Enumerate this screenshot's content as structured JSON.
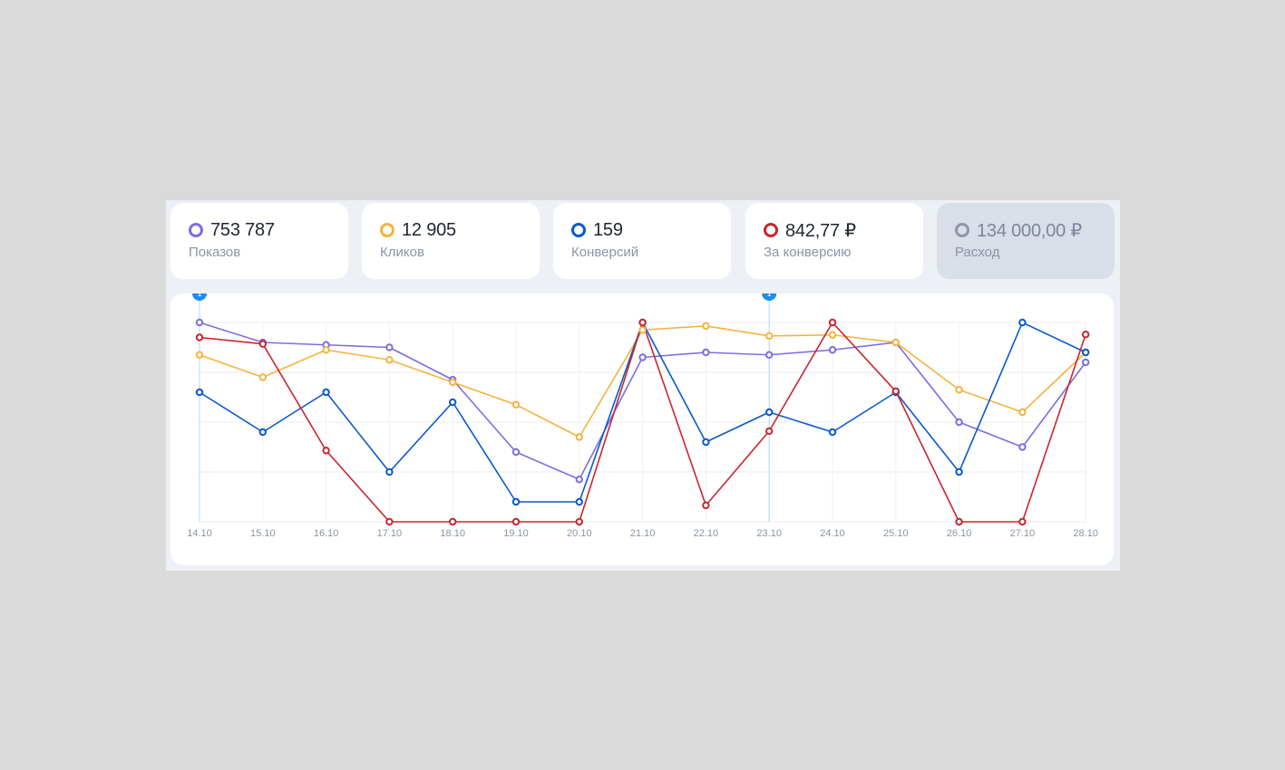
{
  "metrics": [
    {
      "value": "753 787",
      "label": "Показов",
      "color": "#7b6fe2",
      "active": true
    },
    {
      "value": "12 905",
      "label": "Кликов",
      "color": "#f5b33e",
      "active": true
    },
    {
      "value": "159",
      "label": "Конверсий",
      "color": "#0a59cf",
      "active": true
    },
    {
      "value": "842,77 ₽",
      "label": "За конверсию",
      "color": "#c9252e",
      "active": true
    },
    {
      "value": "134 000,00 ₽",
      "label": "Расход",
      "color": "#8e97a8",
      "active": false
    }
  ],
  "chart_data": {
    "type": "line",
    "categories": [
      "14.10",
      "15.10",
      "16.10",
      "17.10",
      "18.10",
      "19.10",
      "20.10",
      "21.10",
      "22.10",
      "23.10",
      "24.10",
      "25.10",
      "26.10",
      "27.10",
      "28.10"
    ],
    "ylim": [
      0,
      4
    ],
    "grid": true,
    "markers": [
      {
        "category": "14.10",
        "label": "1"
      },
      {
        "category": "23.10",
        "label": "1"
      }
    ],
    "series": [
      {
        "name": "Показов",
        "color": "#7b6fe2",
        "values": [
          4.0,
          3.6,
          3.55,
          3.5,
          2.85,
          1.4,
          0.85,
          3.3,
          3.4,
          3.35,
          3.45,
          3.6,
          2.0,
          1.5,
          3.2
        ]
      },
      {
        "name": "Кликов",
        "color": "#f5b33e",
        "values": [
          3.35,
          2.9,
          3.45,
          3.25,
          2.8,
          2.35,
          1.7,
          3.85,
          3.93,
          3.73,
          3.75,
          3.6,
          2.65,
          2.2,
          3.4
        ]
      },
      {
        "name": "Конверсий",
        "color": "#0a59cf",
        "values": [
          2.6,
          1.8,
          2.6,
          1.0,
          2.4,
          0.4,
          0.4,
          4.0,
          1.6,
          2.2,
          1.8,
          2.6,
          1.0,
          4.0,
          3.4
        ]
      },
      {
        "name": "За конверсию",
        "color": "#c9252e",
        "values": [
          3.7,
          3.57,
          1.43,
          0.0,
          0.0,
          0.0,
          0.0,
          4.0,
          0.33,
          1.82,
          4.0,
          2.62,
          0.0,
          0.0,
          3.76
        ]
      }
    ]
  }
}
